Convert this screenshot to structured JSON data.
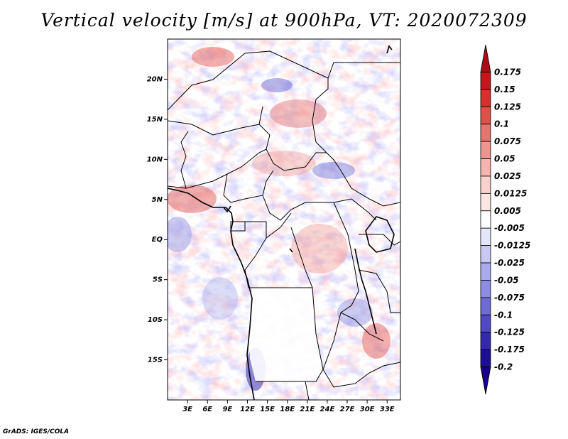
{
  "title": "Vertical velocity [m/s] at 900hPa, VT: 2020072309",
  "footer": "GrADS: IGES/COLA",
  "map": {
    "lat_labels": [
      "20N",
      "15N",
      "10N",
      "5N",
      "EQ",
      "5S",
      "10S",
      "15S"
    ],
    "lon_labels": [
      "3E",
      "6E",
      "9E",
      "12E",
      "15E",
      "18E",
      "21E",
      "24E",
      "27E",
      "30E",
      "33E"
    ],
    "lat_values": [
      20,
      15,
      10,
      5,
      0,
      -5,
      -10,
      -15
    ],
    "lon_values": [
      3,
      6,
      9,
      12,
      15,
      18,
      21,
      24,
      27,
      30,
      33
    ],
    "lon_range": [
      0,
      35
    ],
    "lat_range": [
      -20,
      25
    ]
  },
  "colorbar": {
    "labels": [
      "0.175",
      "0.15",
      "0.125",
      "0.1",
      "0.075",
      "0.05",
      "0.025",
      "0.0125",
      "0.005",
      "-0.005",
      "-0.0125",
      "-0.025",
      "-0.05",
      "-0.075",
      "-0.1",
      "-0.125",
      "-0.175",
      "-0.2"
    ],
    "colors": [
      "#a50f15",
      "#c4161c",
      "#d7302d",
      "#e0504a",
      "#e6736e",
      "#ed9590",
      "#f4b5b1",
      "#f9d0cc",
      "#fbe6e3",
      "#ffffff",
      "#e6e6fa",
      "#c9c8f2",
      "#ababeb",
      "#8d8ce0",
      "#6e6cd3",
      "#5048c4",
      "#3428b0",
      "#1e0e96",
      "#1a008a"
    ]
  }
}
